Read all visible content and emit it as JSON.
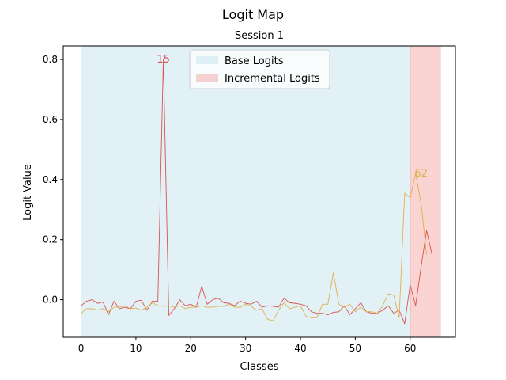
{
  "figure": {
    "suptitle": "Logit Map"
  },
  "chart_data": {
    "type": "line",
    "title": "Session 1",
    "xlabel": "Classes",
    "ylabel": "Logit Value",
    "xlim": [
      -3.25,
      68.25
    ],
    "ylim": [
      -0.125,
      0.845
    ],
    "xticks": [
      0,
      10,
      20,
      30,
      40,
      50,
      60
    ],
    "yticks": [
      0.0,
      0.2,
      0.4,
      0.6,
      0.8
    ],
    "ytick_labels": [
      "0.0",
      "0.2",
      "0.4",
      "0.6",
      "0.8"
    ],
    "grid": false,
    "legend_position": "upper center",
    "regions": [
      {
        "name": "Base Logits",
        "x_start": 0,
        "x_end": 60,
        "color": "#add8e6",
        "alpha": 0.35
      },
      {
        "name": "Incremental Logits",
        "x_start": 60,
        "x_end": 65.5,
        "color": "#f08080",
        "alpha": 0.35
      }
    ],
    "series": [
      {
        "color": "#d9534f",
        "x": [
          0,
          1,
          2,
          3,
          4,
          5,
          6,
          7,
          8,
          9,
          10,
          11,
          12,
          13,
          14,
          15,
          16,
          17,
          18,
          19,
          20,
          21,
          22,
          23,
          24,
          25,
          26,
          27,
          28,
          29,
          30,
          31,
          32,
          33,
          34,
          35,
          36,
          37,
          38,
          39,
          40,
          41,
          42,
          43,
          44,
          45,
          46,
          47,
          48,
          49,
          50,
          51,
          52,
          53,
          54,
          55,
          56,
          57,
          58,
          59,
          60,
          61,
          62,
          63,
          64,
          65
        ],
        "y": [
          -0.02,
          -0.005,
          0.0,
          -0.012,
          -0.008,
          -0.05,
          -0.005,
          -0.03,
          -0.025,
          -0.03,
          -0.005,
          -0.002,
          -0.035,
          -0.005,
          -0.005,
          0.8,
          -0.052,
          -0.03,
          0.0,
          -0.02,
          -0.015,
          -0.025,
          0.045,
          -0.015,
          0.0,
          0.005,
          -0.01,
          -0.012,
          -0.02,
          -0.005,
          -0.012,
          -0.015,
          -0.005,
          -0.025,
          -0.02,
          -0.022,
          -0.025,
          0.005,
          -0.01,
          -0.012,
          -0.015,
          -0.02,
          -0.04,
          -0.045,
          -0.045,
          -0.05,
          -0.042,
          -0.04,
          -0.02,
          -0.05,
          -0.03,
          -0.01,
          -0.04,
          -0.045,
          -0.045,
          -0.035,
          -0.02,
          -0.045,
          -0.035,
          -0.08,
          0.05,
          -0.02,
          0.11,
          0.23,
          0.15,
          null
        ]
      },
      {
        "color": "#e0b050",
        "x": [
          0,
          1,
          2,
          3,
          4,
          5,
          6,
          7,
          8,
          9,
          10,
          11,
          12,
          13,
          14,
          15,
          16,
          17,
          18,
          19,
          20,
          21,
          22,
          23,
          24,
          25,
          26,
          27,
          28,
          29,
          30,
          31,
          32,
          33,
          34,
          35,
          36,
          37,
          38,
          39,
          40,
          41,
          42,
          43,
          44,
          45,
          46,
          47,
          48,
          49,
          50,
          51,
          52,
          53,
          54,
          55,
          56,
          57,
          58,
          59,
          60,
          61,
          62,
          63,
          64
        ],
        "y": [
          -0.045,
          -0.03,
          -0.03,
          -0.035,
          -0.03,
          -0.04,
          -0.025,
          -0.025,
          -0.02,
          -0.03,
          -0.028,
          -0.035,
          -0.025,
          -0.01,
          -0.02,
          -0.022,
          -0.02,
          -0.025,
          -0.02,
          -0.03,
          -0.025,
          -0.025,
          -0.02,
          -0.025,
          -0.025,
          -0.022,
          -0.022,
          -0.015,
          -0.025,
          -0.025,
          -0.015,
          -0.022,
          -0.035,
          -0.03,
          -0.065,
          -0.07,
          -0.035,
          -0.01,
          -0.03,
          -0.025,
          -0.02,
          -0.055,
          -0.06,
          -0.06,
          -0.015,
          -0.015,
          0.09,
          -0.015,
          -0.025,
          -0.015,
          -0.04,
          -0.025,
          -0.04,
          -0.04,
          -0.045,
          -0.02,
          0.02,
          0.015,
          -0.06,
          0.355,
          0.34,
          0.42,
          0.32,
          0.15,
          null
        ]
      }
    ],
    "annotations": [
      {
        "x": 15,
        "y": 0.8,
        "text": "15",
        "color": "#d9534f"
      },
      {
        "x": 62,
        "y": 0.42,
        "text": "62",
        "color": "#e0b050"
      }
    ]
  }
}
